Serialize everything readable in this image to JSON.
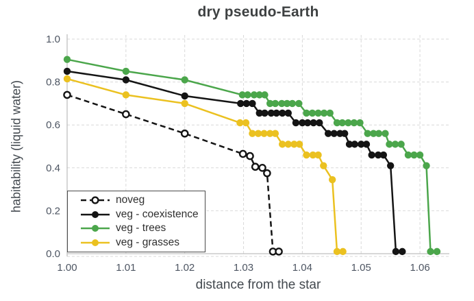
{
  "chart_data": {
    "type": "line",
    "title": "dry pseudo-Earth",
    "xlabel": "distance from the star",
    "ylabel": "habitability (liquid water)",
    "xlim": [
      1.0,
      1.065
    ],
    "ylim": [
      0.0,
      1.0
    ],
    "xticks": [
      1.0,
      1.01,
      1.02,
      1.03,
      1.04,
      1.05,
      1.06
    ],
    "xtick_labels": [
      "1.00",
      "1.01",
      "1.02",
      "1.03",
      "1.04",
      "1.05",
      "1.06"
    ],
    "yticks": [
      0.0,
      0.2,
      0.4,
      0.6,
      0.8,
      1.0
    ],
    "ytick_labels": [
      "0.0",
      "0.2",
      "0.4",
      "0.6",
      "0.8",
      "1.0"
    ],
    "grid": true,
    "legend_position": "lower left",
    "series": [
      {
        "name": "noveg",
        "color": "#141414",
        "line_style": "dashed",
        "marker": "open-circle",
        "points": [
          [
            1.0,
            0.74
          ],
          [
            1.01,
            0.65
          ],
          [
            1.02,
            0.56
          ],
          [
            1.0299,
            0.465
          ],
          [
            1.0311,
            0.455
          ],
          [
            1.032,
            0.405
          ],
          [
            1.0332,
            0.4
          ],
          [
            1.034,
            0.375
          ],
          [
            1.035,
            0.01
          ],
          [
            1.036,
            0.01
          ]
        ]
      },
      {
        "name": "veg - coexistence",
        "color": "#141414",
        "line_style": "solid",
        "marker": "filled-circle",
        "points": [
          [
            1.0,
            0.85
          ],
          [
            1.01,
            0.81
          ],
          [
            1.02,
            0.735
          ],
          [
            1.0295,
            0.7
          ],
          [
            1.0305,
            0.7
          ],
          [
            1.0315,
            0.7
          ],
          [
            1.0327,
            0.655
          ],
          [
            1.0336,
            0.655
          ],
          [
            1.0347,
            0.655
          ],
          [
            1.0356,
            0.655
          ],
          [
            1.0366,
            0.655
          ],
          [
            1.0376,
            0.655
          ],
          [
            1.0389,
            0.61
          ],
          [
            1.04,
            0.61
          ],
          [
            1.0409,
            0.61
          ],
          [
            1.0419,
            0.61
          ],
          [
            1.0429,
            0.61
          ],
          [
            1.0444,
            0.56
          ],
          [
            1.0454,
            0.56
          ],
          [
            1.0464,
            0.56
          ],
          [
            1.0472,
            0.56
          ],
          [
            1.048,
            0.51
          ],
          [
            1.0489,
            0.51
          ],
          [
            1.05,
            0.51
          ],
          [
            1.0509,
            0.51
          ],
          [
            1.0518,
            0.46
          ],
          [
            1.0529,
            0.46
          ],
          [
            1.0538,
            0.46
          ],
          [
            1.055,
            0.41
          ],
          [
            1.0559,
            0.01
          ],
          [
            1.057,
            0.01
          ]
        ]
      },
      {
        "name": "veg - trees",
        "color": "#4BA64B",
        "line_style": "solid",
        "marker": "filled-circle",
        "points": [
          [
            1.0,
            0.905
          ],
          [
            1.01,
            0.85
          ],
          [
            1.02,
            0.81
          ],
          [
            1.0298,
            0.74
          ],
          [
            1.0307,
            0.74
          ],
          [
            1.0318,
            0.74
          ],
          [
            1.0327,
            0.74
          ],
          [
            1.0336,
            0.74
          ],
          [
            1.0345,
            0.7
          ],
          [
            1.0354,
            0.7
          ],
          [
            1.0365,
            0.7
          ],
          [
            1.0374,
            0.7
          ],
          [
            1.0383,
            0.7
          ],
          [
            1.0394,
            0.7
          ],
          [
            1.0407,
            0.655
          ],
          [
            1.0417,
            0.655
          ],
          [
            1.0427,
            0.655
          ],
          [
            1.0437,
            0.655
          ],
          [
            1.0447,
            0.655
          ],
          [
            1.0459,
            0.61
          ],
          [
            1.0468,
            0.61
          ],
          [
            1.0478,
            0.61
          ],
          [
            1.0488,
            0.61
          ],
          [
            1.0498,
            0.61
          ],
          [
            1.0511,
            0.56
          ],
          [
            1.0521,
            0.56
          ],
          [
            1.053,
            0.56
          ],
          [
            1.0541,
            0.56
          ],
          [
            1.0548,
            0.51
          ],
          [
            1.0558,
            0.51
          ],
          [
            1.0568,
            0.51
          ],
          [
            1.058,
            0.46
          ],
          [
            1.059,
            0.46
          ],
          [
            1.06,
            0.46
          ],
          [
            1.0611,
            0.41
          ],
          [
            1.0618,
            0.01
          ],
          [
            1.0629,
            0.01
          ]
        ]
      },
      {
        "name": "veg - grasses",
        "color": "#EBC120",
        "line_style": "solid",
        "marker": "filled-circle",
        "points": [
          [
            1.0,
            0.815
          ],
          [
            1.01,
            0.74
          ],
          [
            1.02,
            0.7
          ],
          [
            1.0294,
            0.61
          ],
          [
            1.0304,
            0.61
          ],
          [
            1.0315,
            0.56
          ],
          [
            1.0325,
            0.56
          ],
          [
            1.0335,
            0.56
          ],
          [
            1.0345,
            0.56
          ],
          [
            1.0354,
            0.56
          ],
          [
            1.0366,
            0.51
          ],
          [
            1.0376,
            0.51
          ],
          [
            1.0386,
            0.51
          ],
          [
            1.0395,
            0.51
          ],
          [
            1.0407,
            0.46
          ],
          [
            1.0418,
            0.46
          ],
          [
            1.0427,
            0.46
          ],
          [
            1.0436,
            0.41
          ],
          [
            1.0451,
            0.345
          ],
          [
            1.0459,
            0.01
          ],
          [
            1.0469,
            0.01
          ]
        ]
      }
    ],
    "style": {
      "grid_color": "#d9d9d9",
      "axis_color": "#bfbfbf",
      "tick_label_color": "#4d5562",
      "title_color": "#3e4142",
      "axis_label_color": "#43494f",
      "legend_border_color": "#4a4a4a",
      "background": "#ffffff"
    }
  }
}
